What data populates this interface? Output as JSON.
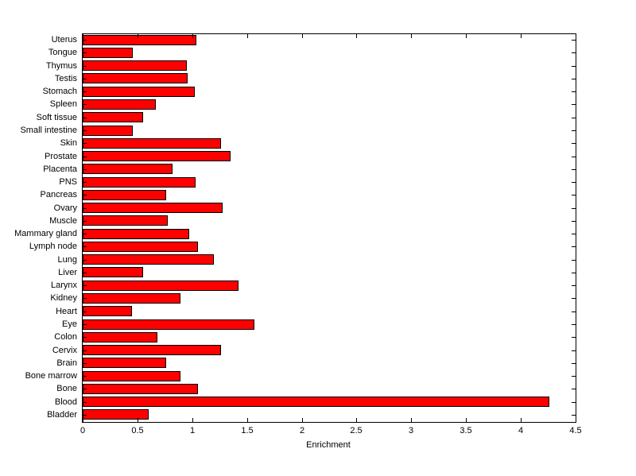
{
  "chart_data": {
    "type": "bar",
    "orientation": "horizontal",
    "title": "",
    "xlabel": "Enrichment",
    "ylabel": "",
    "xlim": [
      0,
      4.5
    ],
    "grid": false,
    "legend": null,
    "bar_color": "#ff0000",
    "bar_edge_color": "#000000",
    "xtick_labels": [
      "0",
      "0.5",
      "1",
      "1.5",
      "2",
      "2.5",
      "3",
      "3.5",
      "4",
      "4.5"
    ],
    "xtick_values": [
      0,
      0.5,
      1,
      1.5,
      2,
      2.5,
      3,
      3.5,
      4,
      4.5
    ],
    "categories": [
      "Uterus",
      "Tongue",
      "Thymus",
      "Testis",
      "Stomach",
      "Spleen",
      "Soft tissue",
      "Small intestine",
      "Skin",
      "Prostate",
      "Placenta",
      "PNS",
      "Pancreas",
      "Ovary",
      "Muscle",
      "Mammary gland",
      "Lymph node",
      "Lung",
      "Liver",
      "Larynx",
      "Kidney",
      "Heart",
      "Eye",
      "Colon",
      "Cervix",
      "Brain",
      "Bone marrow",
      "Bone",
      "Blood",
      "Bladder"
    ],
    "values": [
      1.04,
      0.46,
      0.95,
      0.96,
      1.02,
      0.67,
      0.55,
      0.46,
      1.26,
      1.35,
      0.82,
      1.03,
      0.76,
      1.28,
      0.78,
      0.97,
      1.05,
      1.2,
      0.55,
      1.42,
      0.89,
      0.45,
      1.57,
      0.68,
      1.26,
      0.76,
      0.89,
      1.05,
      4.26,
      0.6
    ]
  }
}
